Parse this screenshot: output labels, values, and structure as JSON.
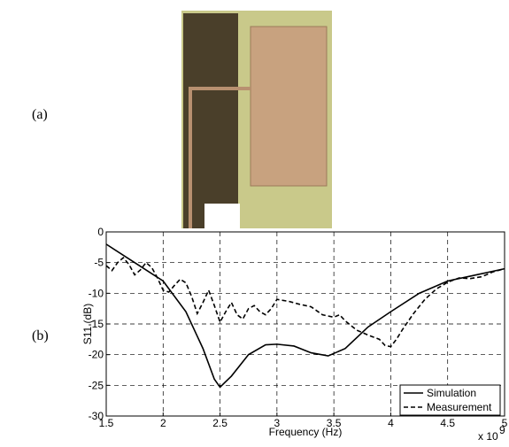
{
  "panel_labels": [
    "(a)",
    "(b)"
  ],
  "chart_data": {
    "type": "line",
    "xlabel": "Frequency (Hz)",
    "ylabel": "S11 (dB)",
    "x_multiplier": {
      "base": "x 10",
      "exponent": "9"
    },
    "xlim": [
      1.5,
      5
    ],
    "ylim": [
      -30,
      0
    ],
    "xticks": [
      1.5,
      2,
      2.5,
      3,
      3.5,
      4,
      4.5,
      5
    ],
    "yticks": [
      0,
      -5,
      -10,
      -15,
      -20,
      -25,
      -30
    ],
    "grid": true,
    "legend": "lower right",
    "series": [
      {
        "name": "Simulation",
        "color": "#000000",
        "dash": "solid",
        "x": [
          1.5,
          1.75,
          2.0,
          2.2,
          2.35,
          2.45,
          2.5,
          2.6,
          2.75,
          2.9,
          3.0,
          3.15,
          3.3,
          3.45,
          3.6,
          3.8,
          4.0,
          4.25,
          4.5,
          4.75,
          5.0
        ],
        "values": [
          -2,
          -5,
          -8,
          -13,
          -19,
          -24,
          -25.3,
          -23.5,
          -20,
          -18.4,
          -18.3,
          -18.6,
          -19.7,
          -20.2,
          -19,
          -15.5,
          -13,
          -10,
          -8,
          -7,
          -6
        ]
      },
      {
        "name": "Measurement",
        "color": "#000000",
        "dash": "dashed",
        "x": [
          1.5,
          1.55,
          1.6,
          1.65,
          1.7,
          1.75,
          1.8,
          1.85,
          1.9,
          1.95,
          2.0,
          2.05,
          2.1,
          2.15,
          2.2,
          2.25,
          2.3,
          2.35,
          2.4,
          2.45,
          2.5,
          2.55,
          2.6,
          2.65,
          2.7,
          2.75,
          2.8,
          2.85,
          2.9,
          2.95,
          3.0,
          3.1,
          3.2,
          3.3,
          3.4,
          3.5,
          3.55,
          3.6,
          3.7,
          3.8,
          3.9,
          3.95,
          4.0,
          4.05,
          4.1,
          4.2,
          4.3,
          4.4,
          4.5,
          4.6,
          4.7,
          4.8,
          4.9,
          5.0
        ],
        "values": [
          -5.5,
          -6.3,
          -5,
          -4.2,
          -5.3,
          -7,
          -6.2,
          -5,
          -5.8,
          -7.5,
          -9.5,
          -9.8,
          -8.7,
          -7.7,
          -8.3,
          -10.5,
          -13.3,
          -11.5,
          -9.5,
          -12,
          -14.7,
          -13,
          -11.5,
          -13.5,
          -14.2,
          -12.5,
          -12,
          -13,
          -13.5,
          -12.5,
          -11,
          -11.3,
          -11.8,
          -12.2,
          -13.5,
          -13.9,
          -13.5,
          -14.5,
          -16,
          -16.8,
          -17.5,
          -18.5,
          -18.7,
          -17.5,
          -16,
          -13.3,
          -11,
          -9.3,
          -8.2,
          -7.5,
          -7.6,
          -7.3,
          -6.5,
          -6
        ]
      }
    ]
  }
}
